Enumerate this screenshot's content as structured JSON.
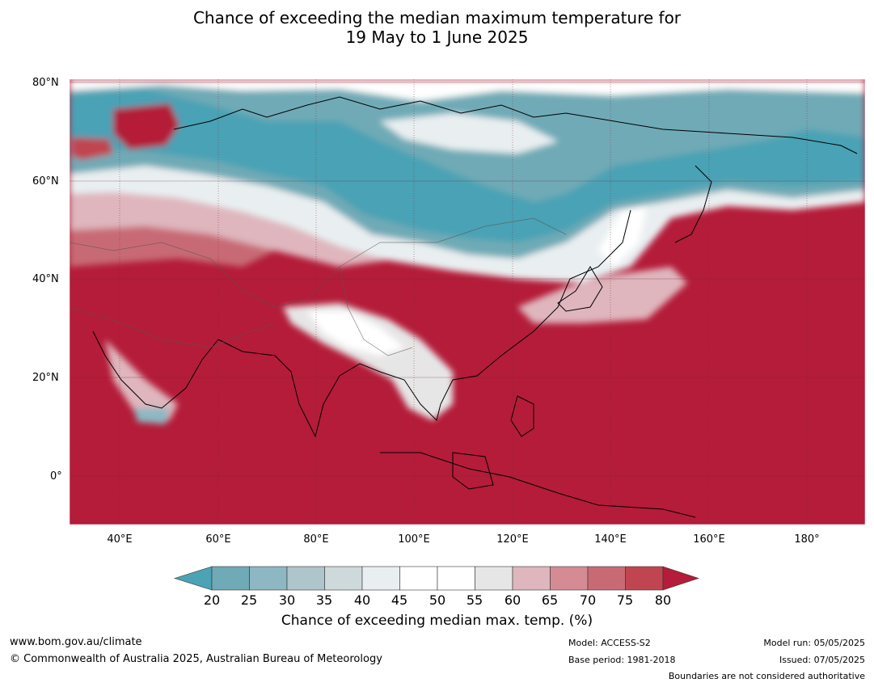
{
  "title": {
    "line1": "Chance of exceeding the median maximum temperature for",
    "line2": "19 May to 1 June 2025"
  },
  "map": {
    "lat_labels": [
      "80°N",
      "60°N",
      "40°N",
      "20°N",
      "0°"
    ],
    "lon_labels": [
      "40°E",
      "60°E",
      "80°E",
      "100°E",
      "120°E",
      "140°E",
      "160°E",
      "180°"
    ],
    "colors": {
      "dominant_warm": "#b41c39",
      "cool": "#4aa2b5",
      "neutral": "#ffffff"
    }
  },
  "colorbar": {
    "ticks": [
      "20",
      "25",
      "30",
      "35",
      "40",
      "45",
      "50",
      "55",
      "60",
      "65",
      "70",
      "75",
      "80"
    ],
    "colors": [
      "#4ba3b5",
      "#6faab6",
      "#8db8c3",
      "#aec5cc",
      "#ced9dc",
      "#e9eff1",
      "#ffffff",
      "#ffffff",
      "#e6e6e6",
      "#dfb6bd",
      "#d48b94",
      "#c86a74",
      "#c14550",
      "#b41c39"
    ],
    "label": "Chance of exceeding median max. temp. (%)"
  },
  "footer": {
    "url": "www.bom.gov.au/climate",
    "copyright": "© Commonwealth of Australia 2025, Australian Bureau of Meteorology",
    "model": "Model: ACCESS-S2",
    "base_period": "Base period: 1981-2018",
    "model_run": "Model run: 05/05/2025",
    "issued": "Issued: 07/05/2025",
    "disclaimer": "Boundaries are not considered authoritative"
  }
}
